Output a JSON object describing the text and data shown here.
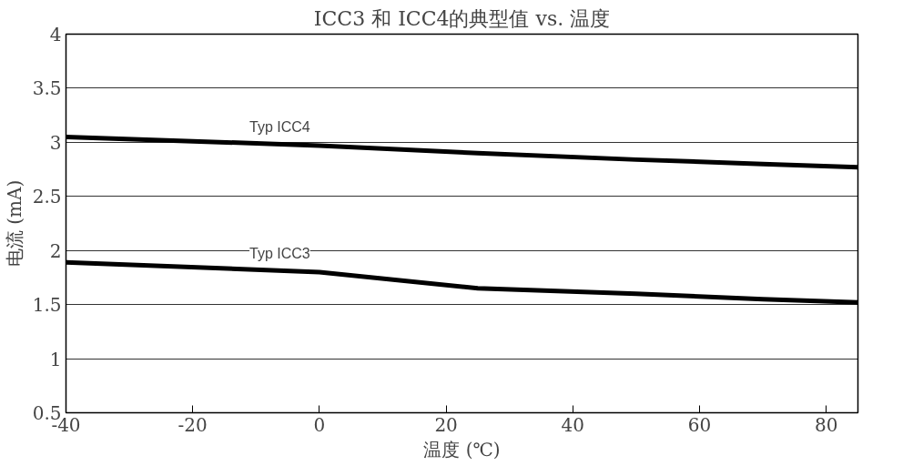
{
  "chart_data": {
    "type": "line",
    "title": "ICC3 和 ICC4的典型值 vs. 温度",
    "xlabel": "温度 (℃)",
    "ylabel": "电流 (mA)",
    "x": [
      -40,
      0,
      25,
      50,
      70,
      85
    ],
    "series": [
      {
        "name": "Typ ICC4",
        "color": "#000000",
        "values": [
          3.05,
          2.97,
          2.9,
          2.84,
          2.8,
          2.77
        ]
      },
      {
        "name": "Typ ICC3",
        "color": "#000000",
        "values": [
          1.89,
          1.8,
          1.65,
          1.6,
          1.55,
          1.52
        ]
      }
    ],
    "xlim": [
      -40,
      85
    ],
    "xticks": [
      -40,
      -20,
      0,
      20,
      40,
      60,
      80
    ],
    "ylim": [
      0.5,
      4
    ],
    "yticks": [
      0.5,
      1,
      1.5,
      2,
      2.5,
      3,
      3.5,
      4
    ],
    "grid": "y",
    "legend": false,
    "marker": "none",
    "line_style": "solid"
  }
}
